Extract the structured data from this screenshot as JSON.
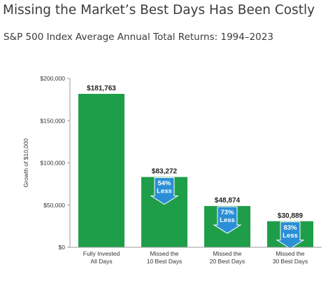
{
  "header": {
    "title": "Missing the Market’s Best Days Has Been Costly",
    "subtitle": "S&P 500 Index Average Annual Total Returns: 1994–2023"
  },
  "chart_data": {
    "type": "bar",
    "ylabel": "Growth of $10,000",
    "ylim": [
      0,
      200000
    ],
    "yticks": [
      0,
      50000,
      100000,
      150000,
      200000
    ],
    "ytick_labels": [
      "$0",
      "$50,000",
      "$100,000",
      "$150,000",
      "$200,000"
    ],
    "bar_color": "#1f9e4a",
    "arrow_color": "#2a8fd6",
    "categories": [
      [
        "Fully Invested",
        "All Days"
      ],
      [
        "Missed the",
        "10 Best Days"
      ],
      [
        "Missed the",
        "20 Best Days"
      ],
      [
        "Missed the",
        "30 Best Days"
      ]
    ],
    "values": [
      181763,
      83272,
      48874,
      30889
    ],
    "value_labels": [
      "$181,763",
      "$83,272",
      "$48,874",
      "$30,889"
    ],
    "annotations": [
      null,
      {
        "line1": "54%",
        "line2": "Less"
      },
      {
        "line1": "73%",
        "line2": "Less"
      },
      {
        "line1": "83%",
        "line2": "Less"
      }
    ]
  }
}
